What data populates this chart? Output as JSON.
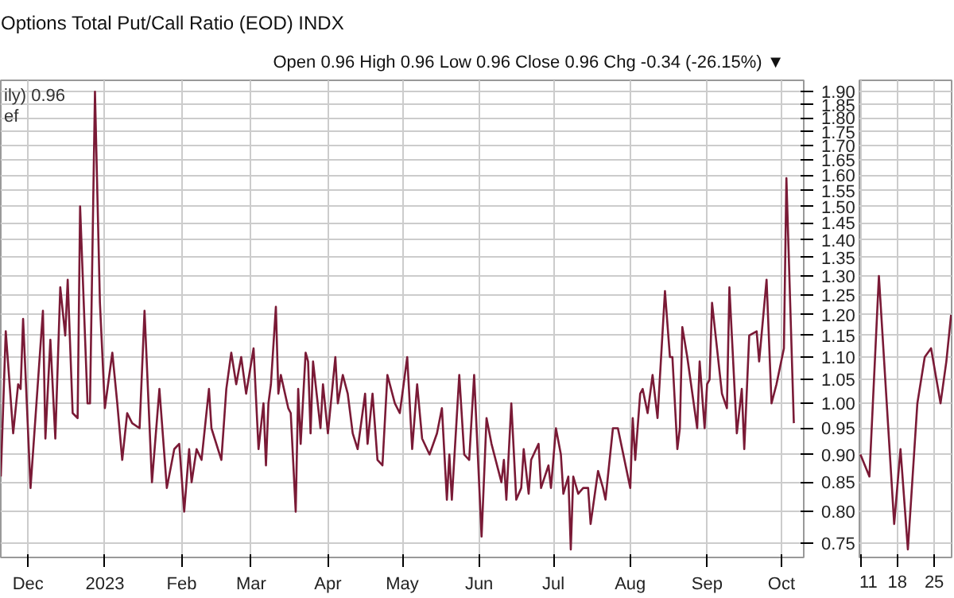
{
  "chart_data": [
    {
      "type": "line",
      "title": "Options Total Put/Call Ratio (EOD)  INDX",
      "annotations": [
        "Open 0.96  High 0.96  Low 0.96  Close 0.96  Chg -0.34 (-26.15%) ▼",
        "ily) 0.96",
        "ef"
      ],
      "x": [
        "2022-11-20",
        "2022-11-22",
        "2022-11-25",
        "2022-11-27",
        "2022-11-28",
        "2022-11-29",
        "2022-12-02",
        "2022-12-07",
        "2022-12-08",
        "2022-12-10",
        "2022-12-12",
        "2022-12-14",
        "2022-12-16",
        "2022-12-17",
        "2022-12-19",
        "2022-12-21",
        "2022-12-22",
        "2022-12-25",
        "2022-12-26",
        "2022-12-28",
        "2022-12-30",
        "2023-01-01",
        "2023-01-04",
        "2023-01-06",
        "2023-01-08",
        "2023-01-10",
        "2023-01-12",
        "2023-01-15",
        "2023-01-17",
        "2023-01-20",
        "2023-01-23",
        "2023-01-26",
        "2023-01-29",
        "2023-01-31",
        "2023-02-02",
        "2023-02-04",
        "2023-02-05",
        "2023-02-07",
        "2023-02-09",
        "2023-02-12",
        "2023-02-13",
        "2023-02-17",
        "2023-02-19",
        "2023-02-21",
        "2023-02-23",
        "2023-02-25",
        "2023-02-27",
        "2023-03-02",
        "2023-03-04",
        "2023-03-06",
        "2023-03-07",
        "2023-03-08",
        "2023-03-09",
        "2023-03-11",
        "2023-03-12",
        "2023-03-13",
        "2023-03-16",
        "2023-03-17",
        "2023-03-19",
        "2023-03-20",
        "2023-03-21",
        "2023-03-23",
        "2023-03-24",
        "2023-03-25",
        "2023-03-26",
        "2023-03-29",
        "2023-03-30",
        "2023-04-01",
        "2023-04-04",
        "2023-04-05",
        "2023-04-07",
        "2023-04-09",
        "2023-04-11",
        "2023-04-13",
        "2023-04-16",
        "2023-04-17",
        "2023-04-19",
        "2023-04-21",
        "2023-04-23",
        "2023-04-25",
        "2023-04-28",
        "2023-04-30",
        "2023-05-03",
        "2023-05-05",
        "2023-05-07",
        "2023-05-09",
        "2023-05-12",
        "2023-05-15",
        "2023-05-17",
        "2023-05-19",
        "2023-05-20",
        "2023-05-21",
        "2023-05-24",
        "2023-05-26",
        "2023-05-28",
        "2023-05-30",
        "2023-06-02",
        "2023-06-04",
        "2023-06-06",
        "2023-06-10",
        "2023-06-11",
        "2023-06-12",
        "2023-06-14",
        "2023-06-16",
        "2023-06-18",
        "2023-06-19",
        "2023-06-21",
        "2023-06-22",
        "2023-06-25",
        "2023-06-26",
        "2023-06-29",
        "2023-06-30",
        "2023-07-02",
        "2023-07-04",
        "2023-07-05",
        "2023-07-07",
        "2023-07-08",
        "2023-07-09",
        "2023-07-11",
        "2023-07-13",
        "2023-07-15",
        "2023-07-16",
        "2023-07-19",
        "2023-07-21",
        "2023-07-22",
        "2023-07-25",
        "2023-07-27",
        "2023-08-01",
        "2023-08-02",
        "2023-08-03",
        "2023-08-05",
        "2023-08-06",
        "2023-08-08",
        "2023-08-10",
        "2023-08-12",
        "2023-08-15",
        "2023-08-17",
        "2023-08-18",
        "2023-08-20",
        "2023-08-21",
        "2023-08-22",
        "2023-08-24",
        "2023-08-28",
        "2023-08-29",
        "2023-08-31",
        "2023-09-01",
        "2023-09-02",
        "2023-09-03",
        "2023-09-07",
        "2023-09-09",
        "2023-09-10",
        "2023-09-13",
        "2023-09-15",
        "2023-09-16",
        "2023-09-18",
        "2023-09-21",
        "2023-09-22",
        "2023-09-25",
        "2023-09-27",
        "2023-09-29",
        "2023-10-02",
        "2023-10-03",
        "2023-10-06"
      ],
      "values": [
        0.86,
        1.16,
        0.94,
        1.04,
        1.03,
        1.19,
        0.84,
        1.21,
        0.93,
        1.14,
        0.93,
        1.27,
        1.15,
        1.29,
        0.98,
        0.97,
        1.5,
        1.0,
        1.0,
        1.9,
        1.23,
        0.99,
        1.11,
        1.0,
        0.89,
        0.98,
        0.96,
        0.95,
        1.21,
        0.85,
        1.03,
        0.84,
        0.91,
        0.92,
        0.8,
        0.91,
        0.85,
        0.91,
        0.89,
        1.03,
        0.95,
        0.89,
        1.03,
        1.11,
        1.04,
        1.1,
        1.02,
        1.12,
        0.91,
        1.0,
        0.88,
        1.0,
        1.04,
        1.22,
        1.02,
        1.06,
        0.99,
        0.98,
        0.8,
        1.03,
        0.92,
        1.11,
        1.09,
        0.94,
        1.09,
        0.95,
        1.04,
        0.94,
        1.1,
        1.0,
        1.06,
        1.02,
        0.94,
        0.91,
        1.02,
        0.92,
        1.02,
        0.89,
        0.88,
        1.06,
        1.0,
        0.98,
        1.1,
        0.91,
        1.04,
        0.93,
        0.9,
        0.94,
        0.99,
        0.82,
        0.9,
        0.82,
        1.06,
        0.9,
        0.89,
        1.06,
        0.76,
        0.97,
        0.92,
        0.85,
        0.89,
        0.82,
        1.0,
        0.82,
        0.84,
        0.91,
        0.83,
        0.89,
        0.92,
        0.84,
        0.88,
        0.84,
        0.95,
        0.9,
        0.83,
        0.86,
        0.74,
        0.86,
        0.83,
        0.84,
        0.84,
        0.78,
        0.87,
        0.84,
        0.82,
        0.95,
        0.95,
        0.84,
        0.97,
        0.89,
        1.02,
        1.03,
        0.98,
        1.06,
        0.97,
        1.26,
        1.1,
        1.1,
        0.91,
        0.95,
        1.17,
        1.1,
        0.95,
        1.09,
        0.95,
        1.04,
        1.05,
        1.23,
        1.02,
        0.99,
        1.27,
        0.94,
        1.03,
        0.91,
        1.15,
        1.16,
        1.09,
        1.29,
        1.0,
        1.04,
        1.12,
        1.59,
        0.96
      ],
      "color": "#7a1a36",
      "xlim": [
        "2022-11-20",
        "2023-10-10"
      ],
      "ylim": [
        0.728,
        1.945
      ],
      "log": true,
      "grid": true,
      "xticks": [
        {
          "value": "2022-12-01",
          "label": "Dec"
        },
        {
          "value": "2023-01-01",
          "label": "2023"
        },
        {
          "value": "2023-02-01",
          "label": "Feb"
        },
        {
          "value": "2023-03-01",
          "label": "Mar"
        },
        {
          "value": "2023-04-01",
          "label": "Apr"
        },
        {
          "value": "2023-05-01",
          "label": "May"
        },
        {
          "value": "2023-06-01",
          "label": "Jun"
        },
        {
          "value": "2023-07-01",
          "label": "Jul"
        },
        {
          "value": "2023-08-01",
          "label": "Aug"
        },
        {
          "value": "2023-09-01",
          "label": "Sep"
        },
        {
          "value": "2023-10-01",
          "label": "Oct"
        }
      ],
      "yticks": [
        {
          "value": 0.75,
          "label": "0.75"
        },
        {
          "value": 0.8,
          "label": "0.80"
        },
        {
          "value": 0.85,
          "label": "0.85"
        },
        {
          "value": 0.9,
          "label": "0.90"
        },
        {
          "value": 0.95,
          "label": "0.95"
        },
        {
          "value": 1.0,
          "label": "1.00"
        },
        {
          "value": 1.05,
          "label": "1.05"
        },
        {
          "value": 1.1,
          "label": "1.10"
        },
        {
          "value": 1.15,
          "label": "1.15"
        },
        {
          "value": 1.2,
          "label": "1.20"
        },
        {
          "value": 1.25,
          "label": "1.25"
        },
        {
          "value": 1.3,
          "label": "1.30"
        },
        {
          "value": 1.35,
          "label": "1.35"
        },
        {
          "value": 1.4,
          "label": "1.40"
        },
        {
          "value": 1.45,
          "label": "1.45"
        },
        {
          "value": 1.5,
          "label": "1.50"
        },
        {
          "value": 1.55,
          "label": "1.55"
        },
        {
          "value": 1.6,
          "label": "1.60"
        },
        {
          "value": 1.65,
          "label": "1.65"
        },
        {
          "value": 1.7,
          "label": "1.70"
        },
        {
          "value": 1.75,
          "label": "1.75"
        },
        {
          "value": 1.8,
          "label": "1.80"
        },
        {
          "value": 1.85,
          "label": "1.85"
        },
        {
          "value": 1.9,
          "label": "1.90"
        }
      ]
    },
    {
      "type": "line",
      "x": [
        11,
        12.7,
        14.5,
        17.4,
        18.6,
        20,
        21.8,
        23.2,
        24.4,
        26.2,
        27.3,
        28.2
      ],
      "values": [
        0.9,
        0.86,
        1.3,
        0.78,
        0.91,
        0.74,
        1.0,
        1.1,
        1.12,
        1.0,
        1.09,
        1.2
      ],
      "color": "#7a1a36",
      "xlim": [
        10.8,
        28.3
      ],
      "ylim": [
        0.728,
        1.945
      ],
      "log": true,
      "grid": true,
      "tick_labels": "x",
      "xticks": [
        11,
        18,
        25
      ]
    }
  ]
}
